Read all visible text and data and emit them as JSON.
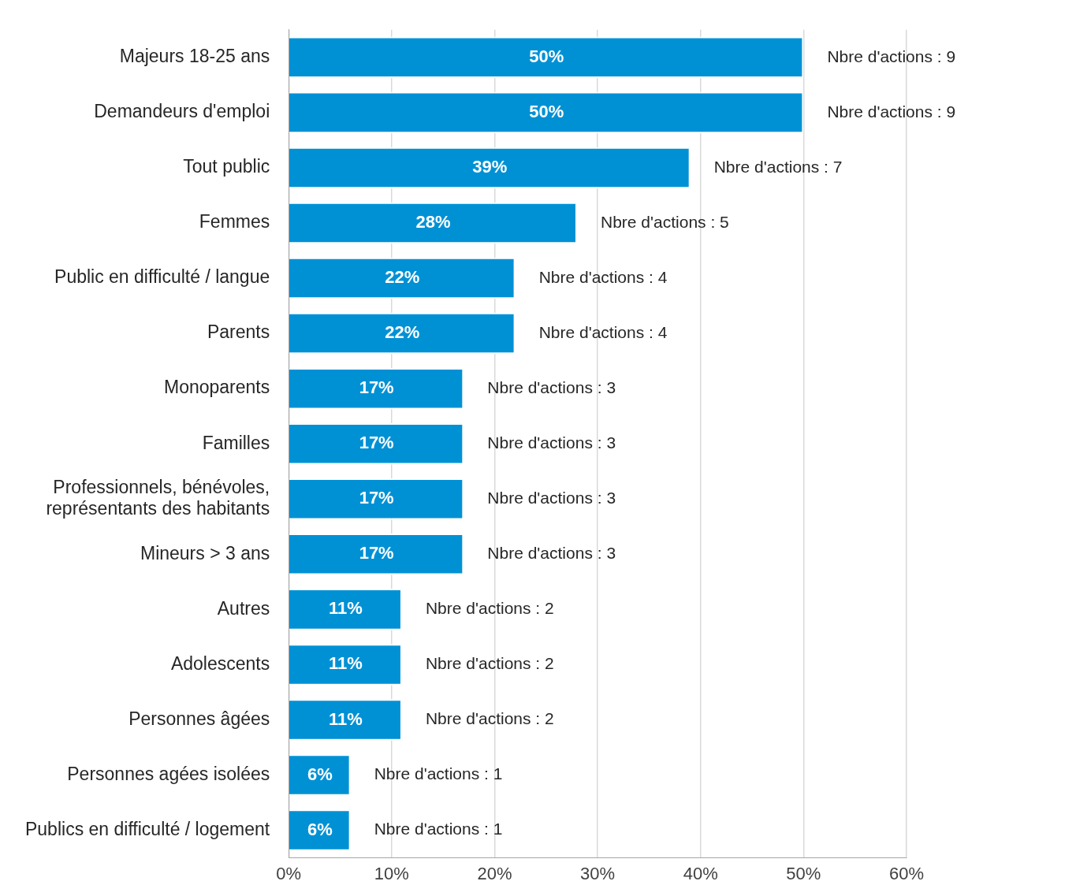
{
  "chart_data": {
    "type": "bar",
    "orientation": "horizontal",
    "categories": [
      "Majeurs 18-25 ans",
      "Demandeurs d'emploi",
      "Tout public",
      "Femmes",
      "Public en difficulté / langue",
      "Parents",
      "Monoparents",
      "Familles",
      "Professionnels, bénévoles, représentants des habitants",
      "Mineurs > 3 ans",
      "Autres",
      "Adolescents",
      "Personnes âgées",
      "Personnes agées isolées",
      "Publics en difficulté / logement"
    ],
    "values": [
      50,
      50,
      39,
      28,
      22,
      22,
      17,
      17,
      17,
      17,
      11,
      11,
      11,
      6,
      6
    ],
    "value_labels": [
      "50%",
      "50%",
      "39%",
      "28%",
      "22%",
      "22%",
      "17%",
      "17%",
      "17%",
      "17%",
      "11%",
      "11%",
      "11%",
      "6%",
      "6%"
    ],
    "color": "#0091d5",
    "xlim": [
      0,
      60
    ],
    "xticks": [
      {
        "value": 0,
        "label": "0%"
      },
      {
        "value": 10,
        "label": "10%"
      },
      {
        "value": 20,
        "label": "20%"
      },
      {
        "value": 30,
        "label": "30%"
      },
      {
        "value": 40,
        "label": "40%"
      },
      {
        "value": 50,
        "label": "50%"
      },
      {
        "value": 60,
        "label": "60%"
      }
    ],
    "grid": "x",
    "legend": false,
    "annotations": [
      {
        "text": "Nbre d'actions : 9",
        "x": 50,
        "y": "Majeurs 18-25 ans"
      },
      {
        "text": "Nbre d'actions : 9",
        "x": 50,
        "y": "Demandeurs d'emploi"
      },
      {
        "text": "Nbre d'actions : 7",
        "x": 39,
        "y": "Tout public"
      },
      {
        "text": "Nbre d'actions : 5",
        "x": 28,
        "y": "Femmes"
      },
      {
        "text": "Nbre d'actions : 4",
        "x": 22,
        "y": "Public en difficulté / langue"
      },
      {
        "text": "Nbre d'actions : 4",
        "x": 22,
        "y": "Parents"
      },
      {
        "text": "Nbre d'actions : 3",
        "x": 17,
        "y": "Monoparents"
      },
      {
        "text": "Nbre d'actions : 3",
        "x": 17,
        "y": "Familles"
      },
      {
        "text": "Nbre d'actions : 3",
        "x": 17,
        "y": "Professionnels, bénévoles, représentants des habitants"
      },
      {
        "text": "Nbre d'actions : 3",
        "x": 17,
        "y": "Mineurs > 3 ans"
      },
      {
        "text": "Nbre d'actions : 2",
        "x": 11,
        "y": "Autres"
      },
      {
        "text": "Nbre d'actions : 2",
        "x": 11,
        "y": "Adolescents"
      },
      {
        "text": "Nbre d'actions : 2",
        "x": 11,
        "y": "Personnes âgées"
      },
      {
        "text": "Nbre d'actions : 1",
        "x": 6,
        "y": "Personnes agées isolées"
      },
      {
        "text": "Nbre d'actions : 1",
        "x": 6,
        "y": "Publics en difficulté / logement"
      }
    ]
  }
}
